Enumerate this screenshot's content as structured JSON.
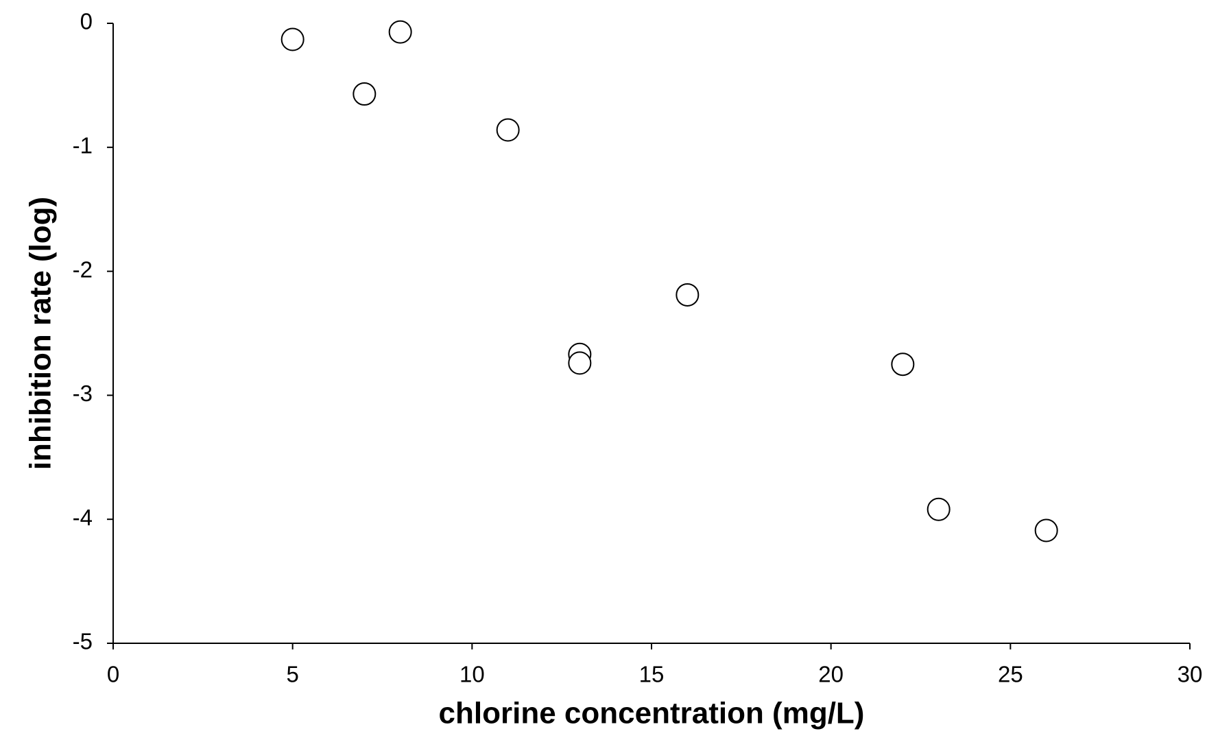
{
  "chart_data": {
    "type": "scatter",
    "x_label": "chlorine concentration (mg/L)",
    "y_label": "inhibition rate (log)",
    "x": [
      5,
      8,
      7,
      11,
      16,
      13,
      13,
      22,
      23,
      26
    ],
    "values": [
      -0.13,
      -0.07,
      -0.57,
      -0.86,
      -2.19,
      -2.67,
      -2.74,
      -2.75,
      -3.92,
      -4.09
    ],
    "marker_fill": "#ffffff",
    "marker_stroke": "#000000",
    "xlim": [
      0,
      30
    ],
    "xticks": [
      0,
      5,
      10,
      15,
      20,
      25,
      30
    ],
    "ylim": [
      -5,
      0
    ],
    "yticks": [
      0,
      -1,
      -2,
      -3,
      -4,
      -5
    ],
    "grid": false
  }
}
